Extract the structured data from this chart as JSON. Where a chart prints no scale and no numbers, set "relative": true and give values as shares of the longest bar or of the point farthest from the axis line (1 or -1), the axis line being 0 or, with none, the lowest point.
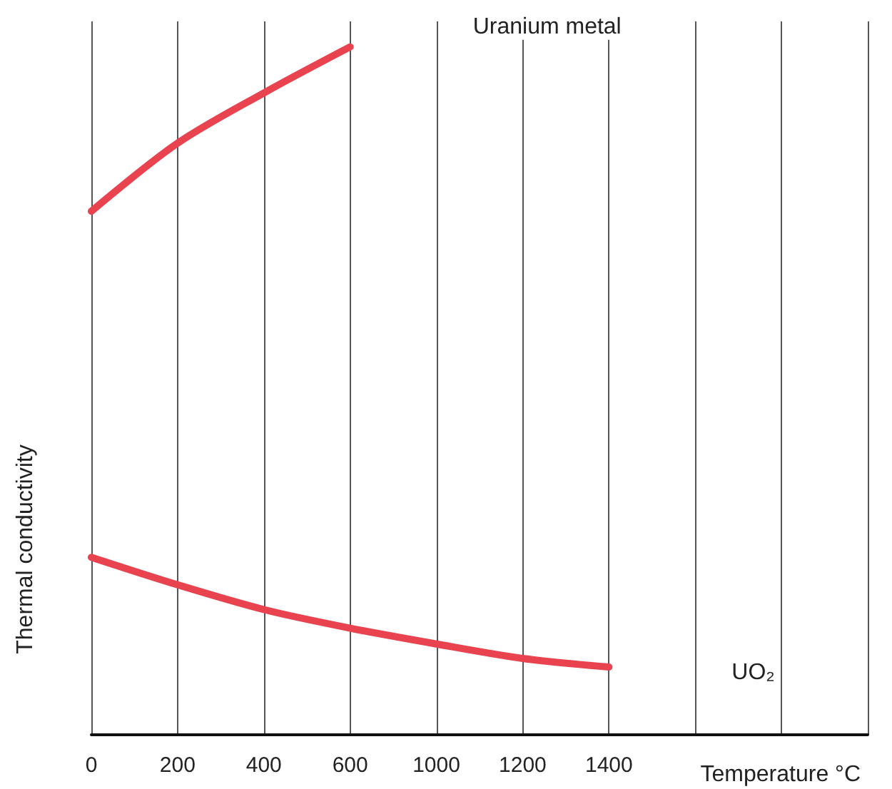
{
  "chart_data": {
    "type": "line",
    "relative": true,
    "xlabel": "Temperature °C",
    "ylabel": "Thermal conductivity",
    "categories": [
      "0",
      "200",
      "400",
      "600",
      "1000",
      "1200",
      "1400",
      null,
      null,
      null
    ],
    "grid": "x",
    "marker": "none",
    "line_style": "solid",
    "series": [
      {
        "name": "Uranium metal",
        "color": "#e8434f",
        "values": [
          0.761,
          0.86,
          0.933,
          1,
          null,
          null,
          null,
          null,
          null,
          null
        ]
      },
      {
        "name": "UO₂",
        "color": "#e8434f",
        "values": [
          0.258,
          0.218,
          0.182,
          0.155,
          0.132,
          0.111,
          0.0985,
          null,
          null,
          null
        ]
      }
    ]
  }
}
